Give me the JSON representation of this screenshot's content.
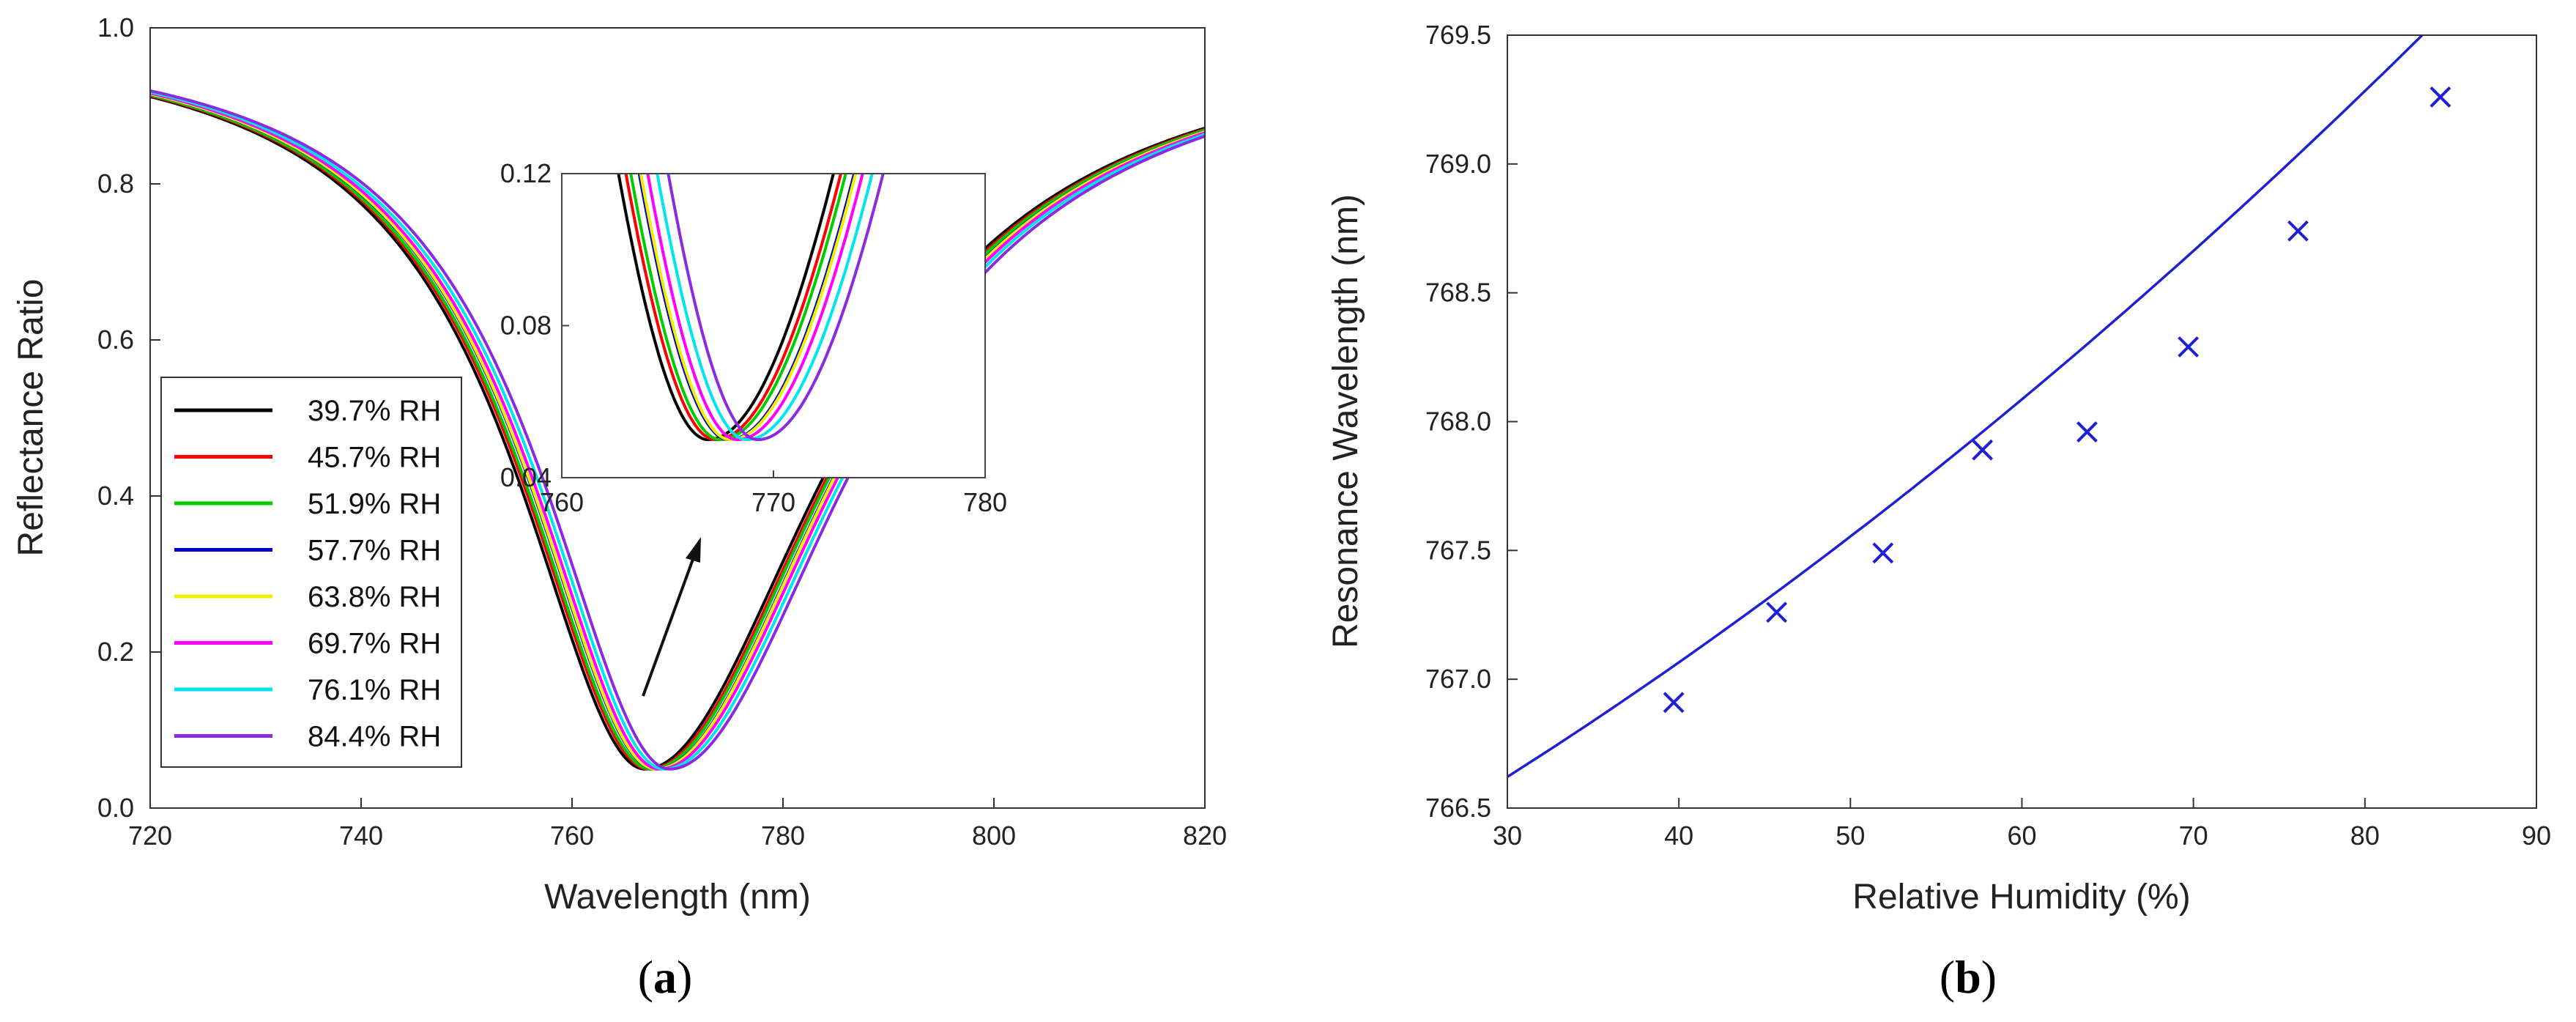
{
  "chart_data": [
    {
      "panel": "a",
      "type": "line",
      "panel_label": {
        "open": "(",
        "letter": "a",
        "close": ")"
      },
      "xlabel": "Wavelength (nm)",
      "ylabel": "Reflectance Ratio",
      "xlim": [
        720,
        820
      ],
      "ylim": [
        0.0,
        1.0
      ],
      "xticks": [
        "720",
        "740",
        "760",
        "780",
        "800",
        "820"
      ],
      "yticks": [
        "0.0",
        "0.2",
        "0.4",
        "0.6",
        "0.8",
        "1.0"
      ],
      "legend_position": "left",
      "min_reflectance": 0.05,
      "series": [
        {
          "name": "39.7% RH",
          "color": "#000000",
          "resonance": 766.91
        },
        {
          "name": "45.7% RH",
          "color": "#ff0000",
          "resonance": 767.26
        },
        {
          "name": "51.9% RH",
          "color": "#00cc00",
          "resonance": 767.49
        },
        {
          "name": "57.7% RH",
          "color": "#0000cc",
          "resonance": 767.89
        },
        {
          "name": "63.8% RH",
          "color": "#eeee00",
          "resonance": 767.96
        },
        {
          "name": "69.7% RH",
          "color": "#ff00ff",
          "resonance": 768.29
        },
        {
          "name": "76.1% RH",
          "color": "#00e5ee",
          "resonance": 768.74
        },
        {
          "name": "84.4% RH",
          "color": "#8a2be2",
          "resonance": 769.26
        }
      ],
      "inset": {
        "xlim": [
          760,
          780
        ],
        "ylim": [
          0.04,
          0.12
        ],
        "xticks": [
          "760",
          "770",
          "780"
        ],
        "yticks": [
          "0.04",
          "0.08",
          "0.12"
        ]
      }
    },
    {
      "panel": "b",
      "type": "scatter",
      "panel_label": {
        "open": "(",
        "letter": "b",
        "close": ")"
      },
      "xlabel": "Relative Humidity (%)",
      "ylabel": "Resonance Wavelength (nm)",
      "xlim": [
        30,
        90
      ],
      "ylim": [
        766.5,
        769.5
      ],
      "xticks": [
        "30",
        "40",
        "50",
        "60",
        "70",
        "80",
        "90"
      ],
      "yticks": [
        "766.5",
        "767.0",
        "767.5",
        "768.0",
        "768.5",
        "769.0",
        "769.5"
      ],
      "marker": "x",
      "color": "#1f1fd6",
      "x": [
        39.7,
        45.7,
        51.9,
        57.7,
        63.8,
        69.7,
        76.1,
        84.4
      ],
      "y": [
        766.91,
        767.26,
        767.49,
        767.89,
        767.96,
        768.29,
        768.74,
        769.26
      ],
      "fit": {
        "type": "quadratic",
        "a": 0.00022,
        "b": 0.02904,
        "c": 765.552
      }
    }
  ]
}
